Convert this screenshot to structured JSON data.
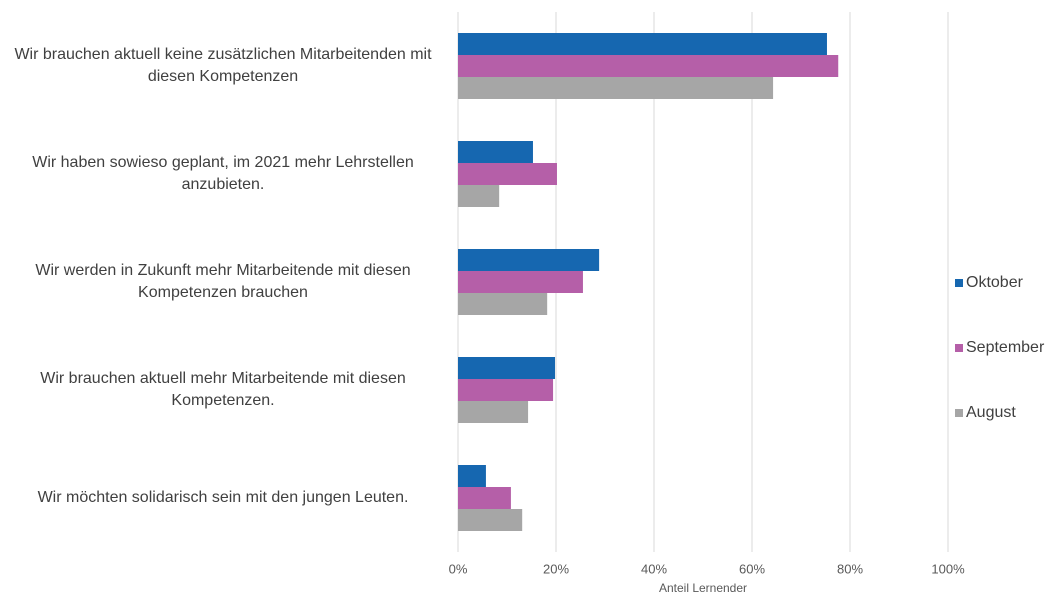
{
  "chart_data": {
    "type": "bar",
    "orientation": "horizontal",
    "x_label": "Anteil Lernender",
    "categories": [
      "Wir brauchen aktuell keine zusätzlichen Mitarbeitenden mit diesen Kompetenzen",
      "Wir haben sowieso geplant, im 2021 mehr Lehrstellen anzubieten.",
      "Wir werden in Zukunft mehr Mitarbeitende mit diesen Kompetenzen brauchen",
      "Wir brauchen aktuell mehr Mitarbeitende mit diesen Kompetenzen.",
      "Wir möchten solidarisch sein mit den jungen Leuten."
    ],
    "series": [
      {
        "name": "Oktober",
        "color": "#1667b0",
        "values": [
          75.3,
          15.3,
          28.8,
          19.8,
          5.7
        ]
      },
      {
        "name": "September",
        "color": "#b55fa8",
        "values": [
          77.6,
          20.2,
          25.5,
          19.4,
          10.8
        ]
      },
      {
        "name": "August",
        "color": "#a6a6a6",
        "values": [
          64.3,
          8.4,
          18.2,
          14.3,
          13.1
        ]
      }
    ],
    "xlim": [
      0,
      100
    ],
    "xticks": [
      {
        "value": 0,
        "label": "0%"
      },
      {
        "value": 20,
        "label": "20%"
      },
      {
        "value": 40,
        "label": "40%"
      },
      {
        "value": 60,
        "label": "60%"
      },
      {
        "value": 80,
        "label": "80%"
      },
      {
        "value": 100,
        "label": "100%"
      }
    ],
    "grid": true,
    "legend": "right"
  }
}
